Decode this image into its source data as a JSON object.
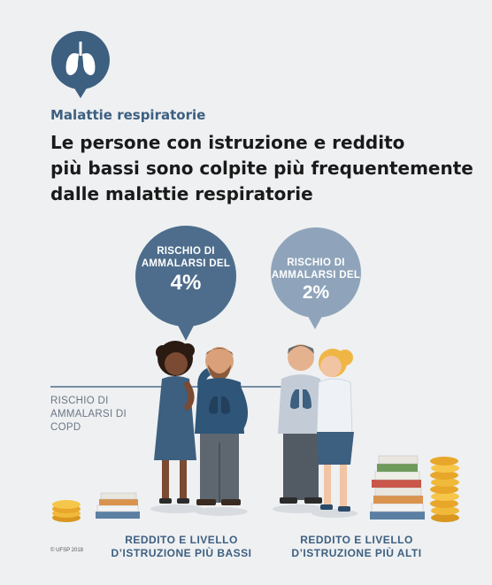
{
  "header": {
    "category": "Malattie respiratorie",
    "title_lines": [
      "Le persone con istruzione e reddito",
      "più bassi sono colpite più frequentemente",
      "dalle malattie respiratorie"
    ],
    "icon": "lungs-icon"
  },
  "bubbles": {
    "low_group": {
      "label_lines": [
        "RISCHIO DI",
        "AMMALARSI DEL"
      ],
      "value": "4%",
      "color": "#4e6d8c"
    },
    "high_group": {
      "label_lines": [
        "RISCHIO DI",
        "AMMALARSI DEL"
      ],
      "value": "2%",
      "color": "#8fa4ba"
    }
  },
  "copd_label_lines": [
    "RISCHIO DI",
    "AMMALARSI DI",
    "COPD"
  ],
  "groups": {
    "low": [
      "REDDITO E LIVELLO",
      "D’ISTRUZIONE PIÙ BASSI"
    ],
    "high": [
      "REDDITO E LIVELLO",
      "D’ISTRUZIONE PIÙ ALTI"
    ]
  },
  "footer": {
    "copyright": "© UFSP 2018"
  },
  "colors": {
    "accent": "#3d5f80",
    "background": "#eef0f2"
  }
}
